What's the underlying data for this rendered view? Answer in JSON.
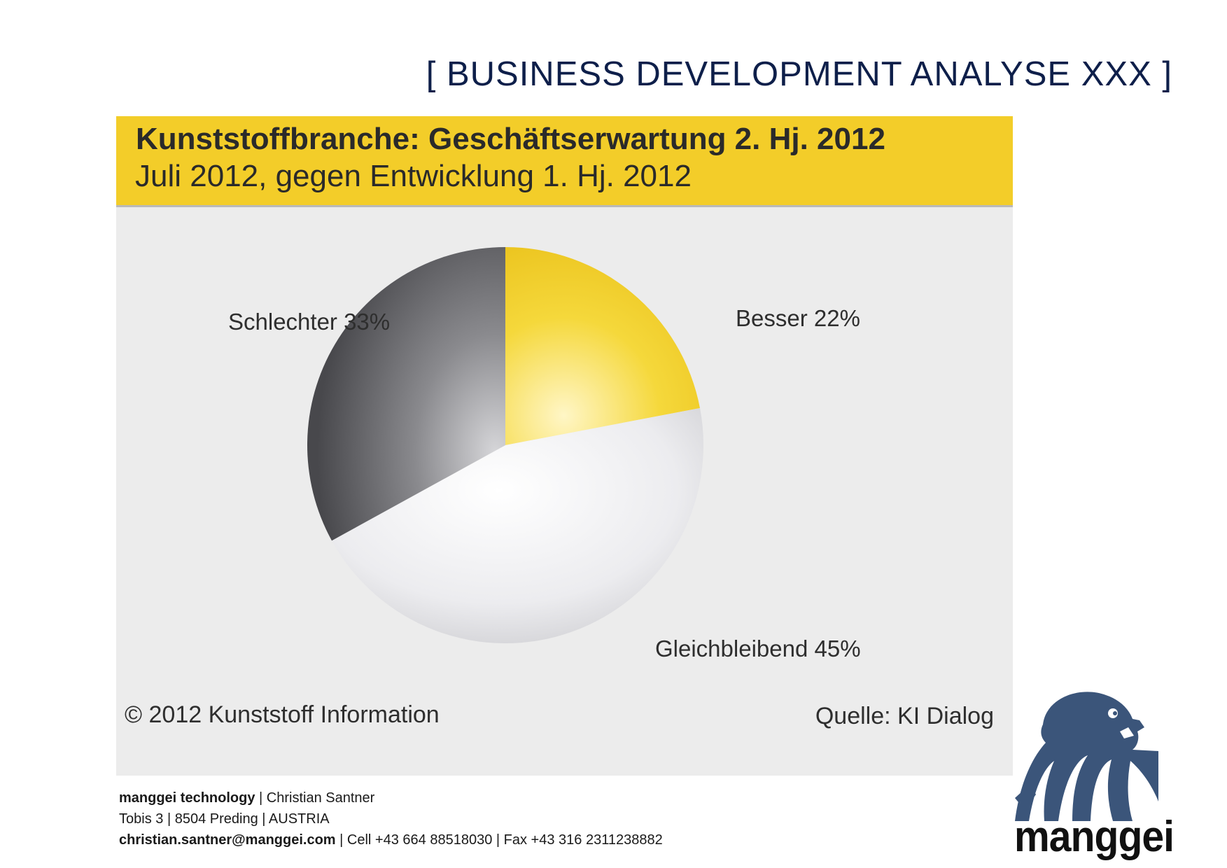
{
  "page": {
    "title": "[ BUSINESS DEVELOPMENT ANALYSE XXX ]"
  },
  "chart_data": {
    "type": "pie",
    "title": "Kunststoffbranche: Geschäftserwartung 2. Hj. 2012",
    "subtitle": "Juli 2012, gegen Entwicklung 1. Hj. 2012",
    "slices": [
      {
        "label": "Besser 22%",
        "name": "Besser",
        "value": 22,
        "color": "#f3cd29"
      },
      {
        "label": "Gleichbleibend 45%",
        "name": "Gleichbleibend",
        "value": 45,
        "color": "#e9e9ec"
      },
      {
        "label": "Schlechter 33%",
        "name": "Schlechter",
        "value": 33,
        "color": "#6f6f73"
      }
    ],
    "copyright": "© 2012 Kunststoff Information",
    "source": "Quelle: KI Dialog"
  },
  "contact": {
    "company": "manggei technology",
    "person": "Christian Santner",
    "address_street": "Tobis 3",
    "address_city": "8504 Preding",
    "address_country": "AUSTRIA",
    "email": "christian.santner@manggei.com",
    "cell": "Cell +43 664 88518030",
    "fax": "Fax +43 316 2311238882"
  },
  "logo": {
    "wordmark": "manggei",
    "icon": "beaver-head-icon",
    "color": "#3b557a"
  }
}
